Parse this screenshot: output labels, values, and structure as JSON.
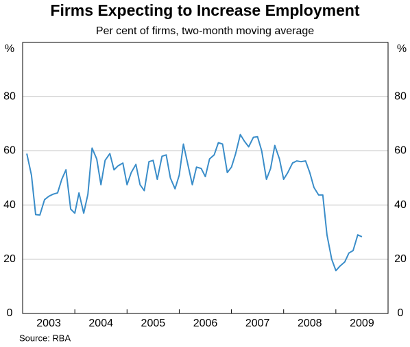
{
  "chart_data": {
    "type": "line",
    "title": "Firms Expecting to Increase Employment",
    "subtitle": "Per cent of firms, two-month moving average",
    "y_unit_left": "%",
    "y_unit_right": "%",
    "source": "Source: RBA",
    "ylim": [
      0,
      100
    ],
    "yticks": [
      0,
      20,
      40,
      60,
      80
    ],
    "xlim": [
      2003,
      2010
    ],
    "xticks": [
      {
        "value": 2003.5,
        "label": "2003"
      },
      {
        "value": 2004.5,
        "label": "2004"
      },
      {
        "value": 2005.5,
        "label": "2005"
      },
      {
        "value": 2006.5,
        "label": "2006"
      },
      {
        "value": 2007.5,
        "label": "2007"
      },
      {
        "value": 2008.5,
        "label": "2008"
      },
      {
        "value": 2009.5,
        "label": "2009"
      }
    ],
    "xminorticks": [
      2004,
      2005,
      2006,
      2007,
      2008,
      2009
    ],
    "grid": true,
    "series": [
      {
        "name": "Firms expecting to increase employment",
        "color": "#3a8dc9",
        "x": [
          2003.08,
          2003.17,
          2003.25,
          2003.33,
          2003.42,
          2003.5,
          2003.58,
          2003.67,
          2003.75,
          2003.83,
          2003.92,
          2004.0,
          2004.08,
          2004.17,
          2004.25,
          2004.33,
          2004.42,
          2004.5,
          2004.58,
          2004.67,
          2004.75,
          2004.83,
          2004.92,
          2005.0,
          2005.08,
          2005.17,
          2005.25,
          2005.33,
          2005.42,
          2005.5,
          2005.58,
          2005.67,
          2005.75,
          2005.83,
          2005.92,
          2006.0,
          2006.08,
          2006.17,
          2006.25,
          2006.33,
          2006.42,
          2006.5,
          2006.58,
          2006.67,
          2006.75,
          2006.83,
          2006.92,
          2007.0,
          2007.08,
          2007.17,
          2007.25,
          2007.33,
          2007.42,
          2007.5,
          2007.58,
          2007.67,
          2007.75,
          2007.83,
          2007.92,
          2008.0,
          2008.08,
          2008.17,
          2008.25,
          2008.33,
          2008.42,
          2008.5,
          2008.58,
          2008.67,
          2008.75,
          2008.83,
          2008.92,
          2009.0,
          2009.08,
          2009.17,
          2009.25,
          2009.33,
          2009.42,
          2009.5
        ],
        "values": [
          59,
          51,
          36.5,
          36.3,
          42,
          43.2,
          44,
          44.5,
          49.5,
          53,
          38.5,
          37,
          44.5,
          37,
          44,
          61,
          57,
          47.5,
          56.5,
          59,
          53,
          54.5,
          55.5,
          47.5,
          52,
          55,
          47.5,
          45.3,
          56,
          56.5,
          49.5,
          58,
          58.5,
          50,
          46,
          51,
          62.5,
          54.5,
          47.5,
          54,
          53.5,
          50.5,
          57,
          58.5,
          63,
          62.5,
          52,
          54,
          59,
          66,
          63.5,
          61.5,
          65,
          65.2,
          60,
          49.5,
          53.5,
          62,
          57,
          49.5,
          52,
          55.5,
          56.3,
          56,
          56.3,
          52,
          46.5,
          43.7,
          43.7,
          29,
          20,
          15.8,
          17.5,
          19,
          22.3,
          23.2,
          29,
          28.3
        ]
      }
    ]
  }
}
